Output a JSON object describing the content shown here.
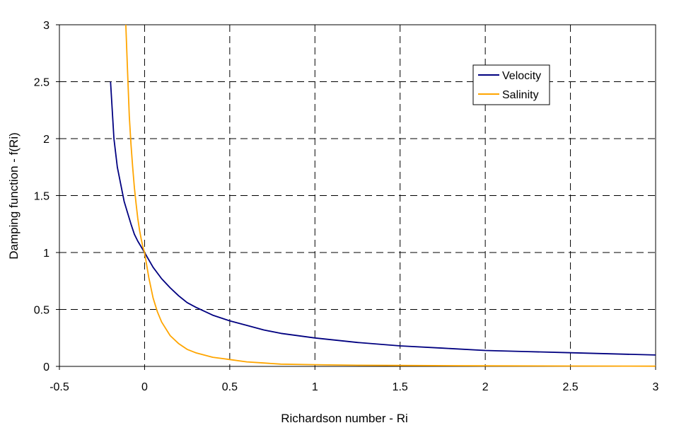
{
  "chart_data": {
    "type": "line",
    "title": "",
    "xlabel": "Richardson number - Ri",
    "ylabel": "Damping function - f(Ri)",
    "xlim": [
      -0.5,
      3
    ],
    "ylim": [
      0,
      3
    ],
    "xticks": [
      -0.5,
      0,
      0.5,
      1,
      1.5,
      2,
      2.5,
      3
    ],
    "yticks": [
      0,
      0.5,
      1,
      1.5,
      2,
      2.5,
      3
    ],
    "x_tick_labels": [
      "-0.5",
      "0",
      "0.5",
      "1",
      "1.5",
      "2",
      "2.5",
      "3"
    ],
    "y_tick_labels": [
      "0",
      "0.5",
      "1",
      "1.5",
      "2",
      "2.5",
      "3"
    ],
    "grid": "dashed",
    "legend_position": "top-right",
    "series": [
      {
        "name": "Velocity",
        "color": "#000080",
        "x": [
          -0.2,
          -0.18,
          -0.16,
          -0.14,
          -0.12,
          -0.1,
          -0.08,
          -0.06,
          -0.04,
          -0.02,
          0,
          0.05,
          0.1,
          0.15,
          0.2,
          0.25,
          0.3,
          0.4,
          0.5,
          0.6,
          0.7,
          0.8,
          1,
          1.25,
          1.5,
          1.75,
          2,
          2.25,
          2.5,
          2.75,
          3
        ],
        "y": [
          2.5,
          2.0,
          1.75,
          1.6,
          1.45,
          1.35,
          1.25,
          1.16,
          1.1,
          1.05,
          1.0,
          0.87,
          0.77,
          0.69,
          0.62,
          0.56,
          0.52,
          0.45,
          0.4,
          0.36,
          0.32,
          0.29,
          0.25,
          0.21,
          0.18,
          0.16,
          0.14,
          0.13,
          0.12,
          0.11,
          0.1
        ]
      },
      {
        "name": "Salinity",
        "color": "#FFA500",
        "x": [
          -0.11,
          -0.1,
          -0.09,
          -0.08,
          -0.07,
          -0.06,
          -0.05,
          -0.04,
          -0.03,
          -0.02,
          -0.01,
          0,
          0.025,
          0.05,
          0.075,
          0.1,
          0.15,
          0.2,
          0.25,
          0.3,
          0.4,
          0.5,
          0.6,
          0.7,
          0.8,
          1,
          1.25,
          1.5,
          2,
          2.5,
          3
        ],
        "y": [
          3.0,
          2.6,
          2.2,
          1.95,
          1.75,
          1.57,
          1.43,
          1.3,
          1.2,
          1.12,
          1.05,
          1.0,
          0.78,
          0.6,
          0.48,
          0.39,
          0.27,
          0.2,
          0.15,
          0.12,
          0.08,
          0.06,
          0.04,
          0.03,
          0.02,
          0.015,
          0.01,
          0.008,
          0.005,
          0.003,
          0.002
        ]
      }
    ]
  }
}
